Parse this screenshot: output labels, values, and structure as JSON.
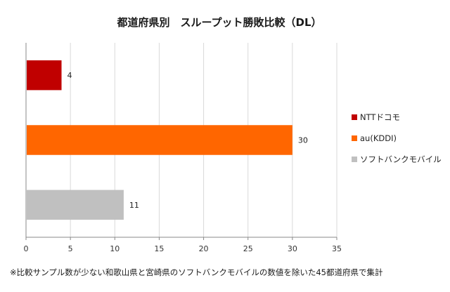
{
  "chart_data": {
    "type": "bar",
    "orientation": "horizontal",
    "title": "都道府県別　スループット勝敗比較（DL）",
    "categories": [
      "NTTドコモ",
      "au(KDDI)",
      "ソフトバンクモバイル"
    ],
    "series": [
      {
        "name": "NTTドコモ",
        "value": 4,
        "color": "#c00000"
      },
      {
        "name": "au(KDDI)",
        "value": 30,
        "color": "#ff6600"
      },
      {
        "name": "ソフトバンクモバイル",
        "value": 11,
        "color": "#c0c0c0"
      }
    ],
    "data_labels": [
      "4",
      "30",
      "11"
    ],
    "xlim": [
      0,
      35
    ],
    "x_ticks": [
      "0",
      "5",
      "10",
      "15",
      "20",
      "25",
      "30",
      "35"
    ],
    "grid": true,
    "legend_position": "right",
    "footnote": "※比較サンプル数が少ない和歌山県と宮崎県のソフトバンクモバイルの数値を除いた45都道府県で集計"
  }
}
